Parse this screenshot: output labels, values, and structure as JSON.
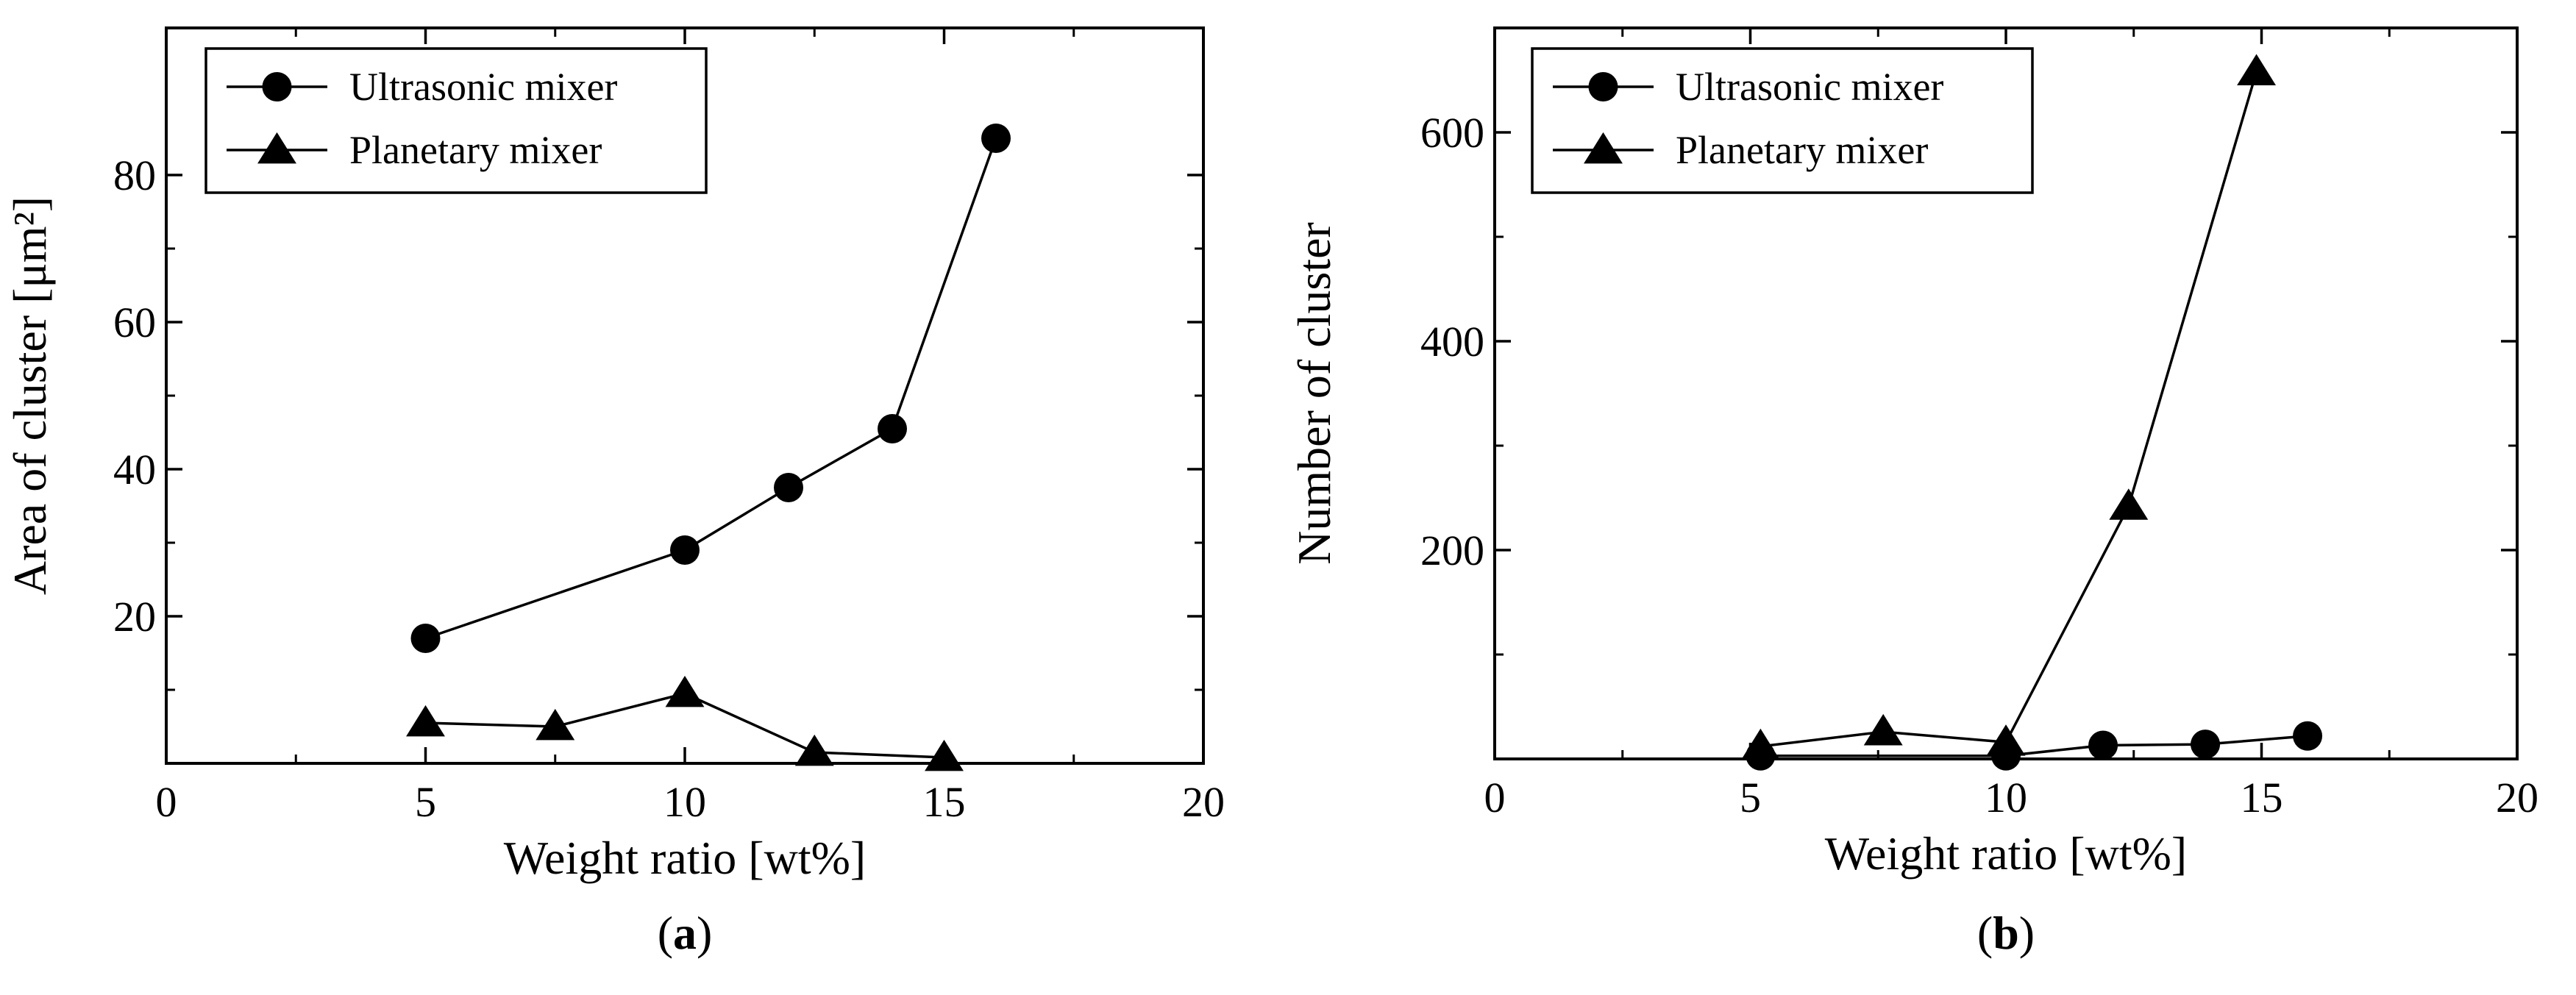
{
  "colors": {
    "ink": "#000000",
    "background": "#ffffff"
  },
  "marker_shapes": [
    "circle",
    "triangle"
  ],
  "chart_data": [
    {
      "type": "line",
      "panel_label": "(a)",
      "panel_letter": "a",
      "title": "",
      "xlabel": "Weight ratio [wt%]",
      "ylabel": "Area of cluster [μm²]",
      "xlim": [
        0,
        20
      ],
      "ylim": [
        0,
        100
      ],
      "xticks": [
        0,
        5,
        10,
        15,
        20
      ],
      "xtick_labels": [
        "0",
        "5",
        "10",
        "15",
        "20"
      ],
      "xminor_ticks": [
        2.5,
        7.5,
        12.5,
        17.5
      ],
      "yticks": [
        20,
        40,
        60,
        80
      ],
      "ytick_labels": [
        "20",
        "40",
        "60",
        "80"
      ],
      "yminor_ticks": [
        10,
        30,
        50,
        70
      ],
      "grid": false,
      "legend_position": "top-left",
      "series": [
        {
          "name": "Ultrasonic mixer",
          "marker": "circle",
          "x": [
            5,
            10,
            12,
            14,
            16
          ],
          "y": [
            17,
            29,
            37.5,
            45.5,
            85
          ]
        },
        {
          "name": "Planetary mixer",
          "marker": "triangle",
          "x": [
            5,
            7.5,
            10,
            12.5,
            15
          ],
          "y": [
            5.5,
            5,
            9.5,
            1.5,
            0.8
          ]
        }
      ]
    },
    {
      "type": "line",
      "panel_label": "(b)",
      "panel_letter": "b",
      "title": "",
      "xlabel": "Weight ratio [wt%]",
      "ylabel": "Number of cluster",
      "xlim": [
        0,
        20
      ],
      "ylim": [
        0,
        700
      ],
      "xticks": [
        0,
        5,
        10,
        15,
        20
      ],
      "xtick_labels": [
        "0",
        "5",
        "10",
        "15",
        "20"
      ],
      "xminor_ticks": [
        2.5,
        7.5,
        12.5,
        17.5
      ],
      "yticks": [
        200,
        400,
        600
      ],
      "ytick_labels": [
        "200",
        "400",
        "600"
      ],
      "yminor_ticks": [
        100,
        300,
        500
      ],
      "grid": false,
      "legend_position": "top-left",
      "series": [
        {
          "name": "Ultrasonic mixer",
          "marker": "circle",
          "x": [
            5.2,
            10,
            11.9,
            13.9,
            15.9
          ],
          "y": [
            3,
            3,
            13,
            14,
            22
          ]
        },
        {
          "name": "Planetary mixer",
          "marker": "triangle",
          "x": [
            5.2,
            7.6,
            10,
            12.4,
            14.9
          ],
          "y": [
            12,
            26,
            16,
            242,
            658
          ]
        }
      ]
    }
  ]
}
